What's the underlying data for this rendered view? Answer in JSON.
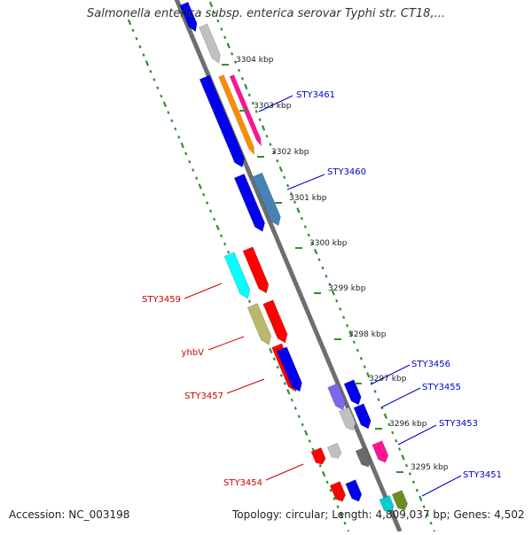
{
  "title": "Salmonella enterica subsp. enterica serovar Typhi str. CT18,...",
  "footer": {
    "accession": "Accession: NC_003198",
    "summary": "Topology: circular; Length: 4,809,037 bp; Genes: 4,502"
  },
  "colors": {
    "backbone": "#6e6e6e",
    "tick_dots": "#2f8f2f",
    "forward_label": "#0000cc",
    "reverse_label": "#cc0000"
  },
  "ticks": [
    {
      "label": "3304 kbp"
    },
    {
      "label": "3303 kbp"
    },
    {
      "label": "3302 kbp"
    },
    {
      "label": "3301 kbp"
    },
    {
      "label": "3300 kbp"
    },
    {
      "label": "3299 kbp"
    },
    {
      "label": "3298 kbp"
    },
    {
      "label": "3297 kbp"
    },
    {
      "label": "3296 kbp"
    },
    {
      "label": "3295 kbp"
    }
  ],
  "gene_labels": [
    {
      "text": "STY3461",
      "strand": "forward"
    },
    {
      "text": "STY3460",
      "strand": "forward"
    },
    {
      "text": "STY3459",
      "strand": "reverse"
    },
    {
      "text": "yhbV",
      "strand": "reverse"
    },
    {
      "text": "STY3457",
      "strand": "reverse"
    },
    {
      "text": "STY3456",
      "strand": "forward"
    },
    {
      "text": "STY3455",
      "strand": "forward"
    },
    {
      "text": "STY3454",
      "strand": "reverse"
    },
    {
      "text": "STY3453",
      "strand": "forward"
    },
    {
      "text": "STY3451",
      "strand": "forward"
    }
  ],
  "features": [
    {
      "color": "#0000ee",
      "icon": "gene-arrow"
    },
    {
      "color": "#c0c0c0",
      "icon": "gene-arrow"
    },
    {
      "color": "#0000ee",
      "icon": "gene-arrow"
    },
    {
      "color": "#ff8c00",
      "icon": "gene-arrow"
    },
    {
      "color": "#ff1493",
      "icon": "gene-arrow"
    },
    {
      "color": "#0000ee",
      "icon": "gene-arrow"
    },
    {
      "color": "#4682b4",
      "icon": "gene-arrow"
    },
    {
      "color": "#00ffff",
      "icon": "gene-arrow"
    },
    {
      "color": "#ff0000",
      "icon": "gene-arrow"
    },
    {
      "color": "#bdb76b",
      "icon": "gene-arrow"
    },
    {
      "color": "#ff0000",
      "icon": "gene-arrow"
    },
    {
      "color": "#ff0000",
      "icon": "gene-arrow"
    },
    {
      "color": "#0000ee",
      "icon": "gene-arrow"
    },
    {
      "color": "#7b68ee",
      "icon": "gene-arrow"
    },
    {
      "color": "#0000ee",
      "icon": "gene-arrow"
    },
    {
      "color": "#c0c0c0",
      "icon": "gene-arrow"
    },
    {
      "color": "#0000ee",
      "icon": "gene-arrow"
    },
    {
      "color": "#696969",
      "icon": "gene-arrow"
    },
    {
      "color": "#ff1493",
      "icon": "gene-arrow"
    },
    {
      "color": "#ff0000",
      "icon": "gene-arrow"
    },
    {
      "color": "#c0c0c0",
      "icon": "gene-arrow"
    },
    {
      "color": "#ff0000",
      "icon": "gene-arrow"
    },
    {
      "color": "#0000ee",
      "icon": "gene-arrow"
    },
    {
      "color": "#00ced1",
      "icon": "gene-arrow"
    },
    {
      "color": "#6b8e23",
      "icon": "gene-arrow"
    }
  ]
}
